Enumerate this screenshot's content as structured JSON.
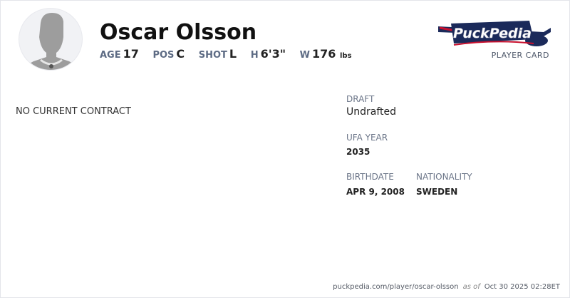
{
  "player": {
    "name": "Oscar Olsson",
    "stats": [
      {
        "label": "AGE",
        "value": "17"
      },
      {
        "label": "POS",
        "value": "C"
      },
      {
        "label": "SHOT",
        "value": "L"
      },
      {
        "label": "H",
        "value": "6'3\""
      },
      {
        "label": "W",
        "value": "176",
        "unit": "lbs"
      }
    ]
  },
  "brand": {
    "logo_text": "PuckPedia",
    "subtitle": "PLAYER CARD",
    "colors": {
      "navy": "#1b2a5a",
      "red": "#c8102e"
    }
  },
  "contract": {
    "status": "NO CURRENT CONTRACT"
  },
  "details": {
    "draft_label": "DRAFT",
    "draft_value": "Undrafted",
    "ufa_label": "UFA YEAR",
    "ufa_value": "2035",
    "birthdate_label": "BIRTHDATE",
    "birthdate_value": "APR 9, 2008",
    "nationality_label": "NATIONALITY",
    "nationality_value": "SWEDEN"
  },
  "footer": {
    "url": "puckpedia.com/player/oscar-olsson",
    "as_of": "as of",
    "timestamp": "Oct 30 2025 02:28ET"
  }
}
